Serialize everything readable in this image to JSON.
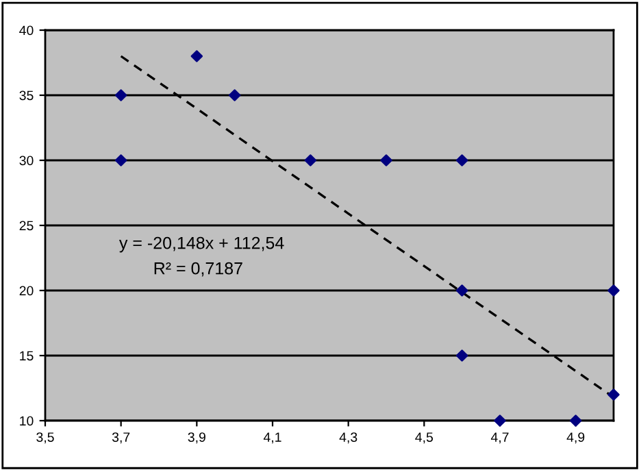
{
  "chart_data": {
    "type": "scatter",
    "x": [
      3.7,
      3.7,
      3.9,
      4.0,
      4.2,
      4.4,
      4.6,
      4.6,
      4.6,
      4.7,
      4.9,
      5.0,
      5.0
    ],
    "series": [
      {
        "color": "#000080",
        "marker": "diamond",
        "values": [
          35,
          30,
          38,
          35,
          30,
          30,
          30,
          20,
          15,
          10,
          10,
          20,
          12
        ]
      },
      {
        "type": "line",
        "color": "#000000",
        "line_style": "dashed",
        "marker": "none",
        "x": [
          3.7,
          5.0
        ],
        "values": [
          38.0,
          11.8
        ]
      }
    ],
    "annotations": [
      "y = -20,148x + 112,54",
      "R² = 0,7187"
    ],
    "xlim": [
      3.5,
      5.0
    ],
    "xticks": [
      {
        "value": 3.5,
        "label": "3,5"
      },
      {
        "value": 3.7,
        "label": "3,7"
      },
      {
        "value": 3.9,
        "label": "3,9"
      },
      {
        "value": 4.1,
        "label": "4,1"
      },
      {
        "value": 4.3,
        "label": "4,3"
      },
      {
        "value": 4.5,
        "label": "4,5"
      },
      {
        "value": 4.7,
        "label": "4,7"
      },
      {
        "value": 4.9,
        "label": "4,9"
      }
    ],
    "ylim": [
      10,
      40
    ],
    "yticks": [
      10,
      15,
      20,
      25,
      30,
      35,
      40
    ],
    "grid": "y",
    "legend": false
  }
}
